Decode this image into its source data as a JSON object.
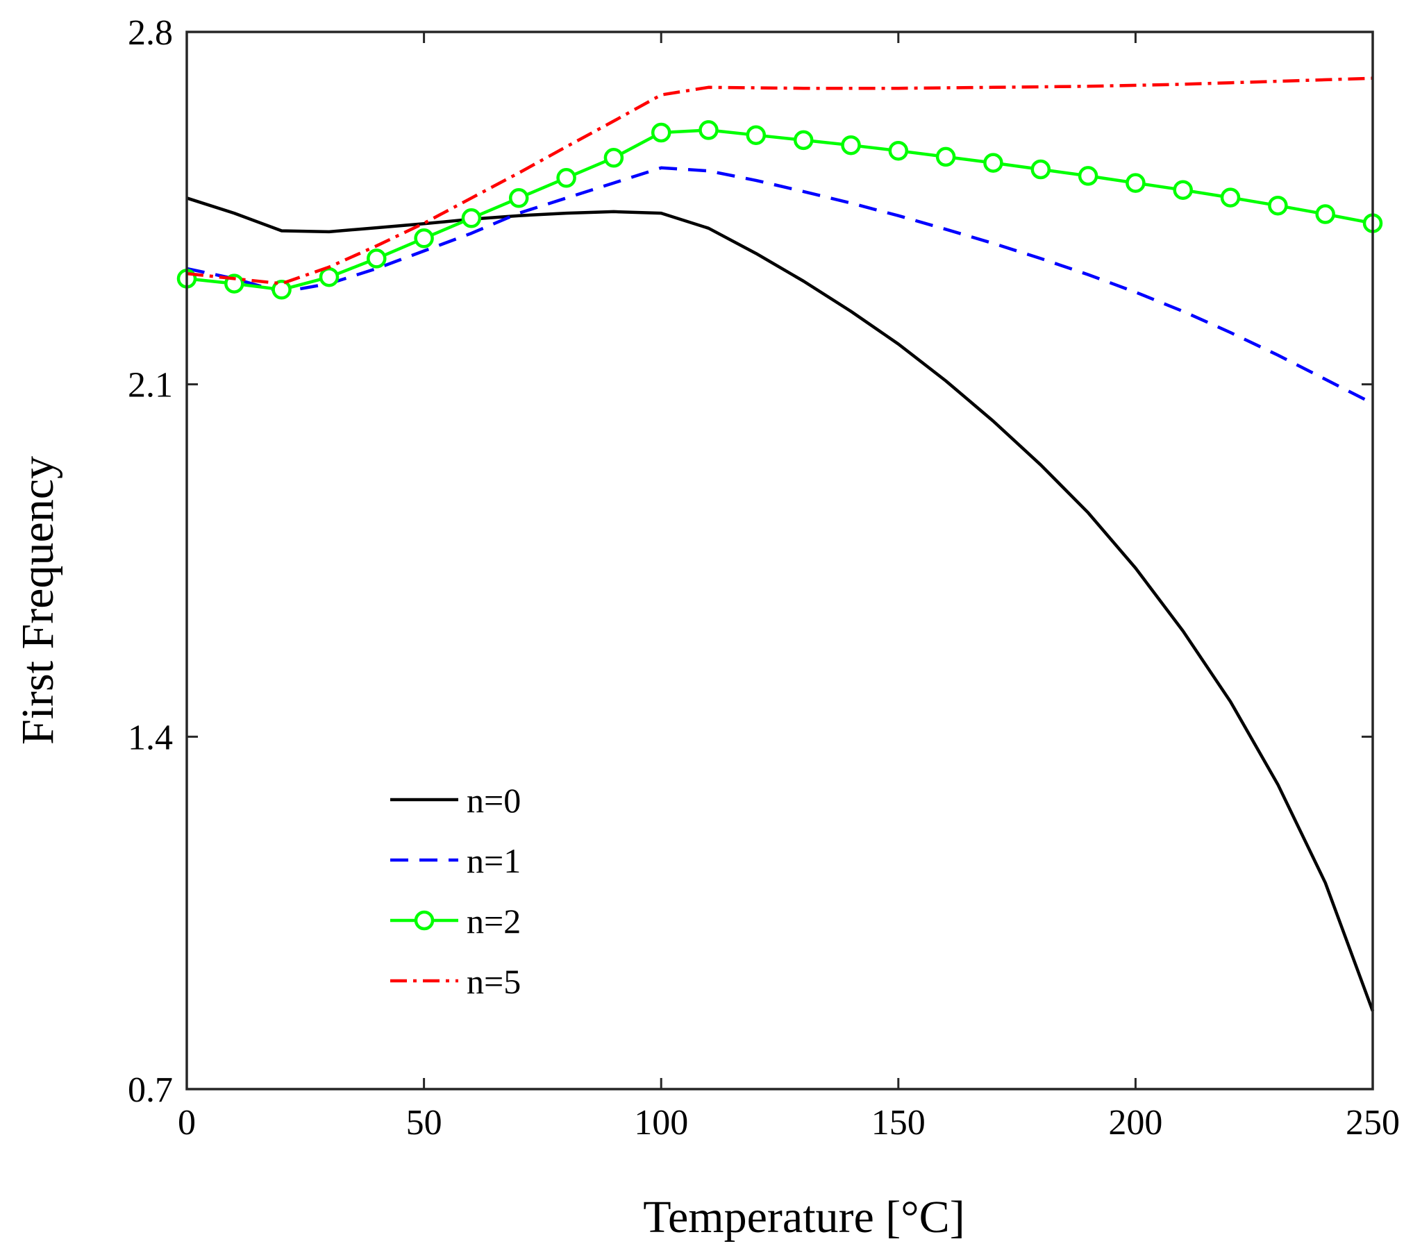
{
  "chart_data": {
    "type": "line",
    "title": "",
    "xlabel": "Temperature [°C]",
    "ylabel": "First Frequency",
    "xlim": [
      0,
      250
    ],
    "ylim": [
      0.7,
      2.8
    ],
    "xticks": [
      0,
      50,
      100,
      150,
      200,
      250
    ],
    "yticks": [
      0.7,
      1.4,
      2.1,
      2.8
    ],
    "xtick_labels": [
      "0",
      "50",
      "100",
      "150",
      "200",
      "250"
    ],
    "ytick_labels": [
      "0.7",
      "1.4",
      "2.1",
      "2.8"
    ],
    "grid": false,
    "legend_position": "bottom-left",
    "x": [
      0,
      10,
      20,
      30,
      40,
      50,
      60,
      70,
      80,
      90,
      100,
      110,
      120,
      130,
      140,
      150,
      160,
      170,
      180,
      190,
      200,
      210,
      220,
      230,
      240,
      250
    ],
    "series": [
      {
        "name": "n=0",
        "color": "#000000",
        "style": "solid",
        "marker": "none",
        "values": [
          2.47,
          2.44,
          2.405,
          2.403,
          2.411,
          2.419,
          2.428,
          2.435,
          2.44,
          2.443,
          2.44,
          2.41,
          2.36,
          2.305,
          2.245,
          2.18,
          2.107,
          2.027,
          1.94,
          1.845,
          1.735,
          1.61,
          1.47,
          1.305,
          1.11,
          0.855
        ]
      },
      {
        "name": "n=1",
        "color": "#0000ff",
        "style": "dashed",
        "marker": "none",
        "values": [
          2.33,
          2.31,
          2.283,
          2.3,
          2.33,
          2.365,
          2.4,
          2.44,
          2.47,
          2.5,
          2.53,
          2.524,
          2.505,
          2.483,
          2.46,
          2.435,
          2.408,
          2.38,
          2.35,
          2.318,
          2.283,
          2.245,
          2.203,
          2.158,
          2.11,
          2.062
        ]
      },
      {
        "name": "n=2",
        "color": "#00ff00",
        "style": "solid",
        "marker": "circle",
        "values": [
          2.31,
          2.3,
          2.288,
          2.313,
          2.35,
          2.39,
          2.43,
          2.47,
          2.51,
          2.55,
          2.6,
          2.605,
          2.595,
          2.585,
          2.575,
          2.564,
          2.552,
          2.54,
          2.527,
          2.514,
          2.5,
          2.486,
          2.471,
          2.455,
          2.438,
          2.42
        ]
      },
      {
        "name": "n=5",
        "color": "#ff0000",
        "style": "dashdot",
        "marker": "none",
        "values": [
          2.32,
          2.31,
          2.3,
          2.333,
          2.375,
          2.42,
          2.47,
          2.52,
          2.572,
          2.623,
          2.675,
          2.69,
          2.689,
          2.688,
          2.688,
          2.688,
          2.689,
          2.69,
          2.691,
          2.692,
          2.694,
          2.696,
          2.699,
          2.702,
          2.705,
          2.708
        ]
      }
    ]
  }
}
